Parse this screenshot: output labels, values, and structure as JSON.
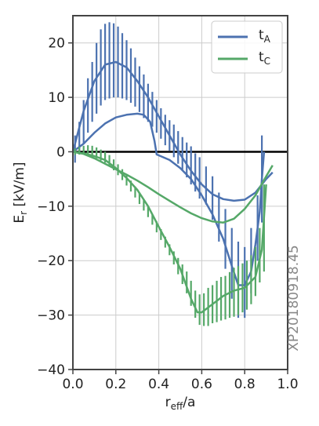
{
  "chart_data": {
    "type": "line",
    "xlabel": {
      "main": "r",
      "sub": "eff",
      "tail": "/a"
    },
    "ylabel": {
      "main": "E",
      "sub": "r",
      "tail": " [kV/m]"
    },
    "xlim": [
      0.0,
      1.0
    ],
    "ylim": [
      -40,
      25
    ],
    "xticks": [
      0.0,
      0.2,
      0.4,
      0.6,
      0.8,
      1.0
    ],
    "xtick_labels": [
      "0.0",
      "0.2",
      "0.4",
      "0.6",
      "0.8",
      "1.0"
    ],
    "yticks": [
      -40,
      -30,
      -20,
      -10,
      0,
      10,
      20
    ],
    "ytick_labels": [
      "−40",
      "−30",
      "−20",
      "−10",
      "0",
      "10",
      "20"
    ],
    "grid": true,
    "legend_position": "top-right",
    "zero_line": true,
    "watermark": "XP20180918.45",
    "series": [
      {
        "legend_main": "t",
        "legend_sub": "A",
        "color": "#4c72b0",
        "fits": [
          {
            "x": [
              0.0,
              0.05,
              0.1,
              0.15,
              0.2,
              0.25,
              0.3,
              0.35,
              0.4,
              0.45,
              0.5,
              0.55,
              0.6,
              0.65,
              0.7,
              0.75,
              0.8,
              0.85,
              0.9,
              0.93
            ],
            "y": [
              0.0,
              7.5,
              13.0,
              16.0,
              16.5,
              15.5,
              13.0,
              10.0,
              6.5,
              3.0,
              -0.5,
              -3.5,
              -6.0,
              -7.8,
              -8.7,
              -9.0,
              -8.8,
              -7.5,
              -5.0,
              -3.8
            ]
          },
          {
            "x": [
              0.0,
              0.05,
              0.1,
              0.15,
              0.2,
              0.25,
              0.3,
              0.33,
              0.36,
              0.38,
              0.39,
              0.45,
              0.5,
              0.55,
              0.6,
              0.65,
              0.7,
              0.74,
              0.77,
              0.8,
              0.83,
              0.85,
              0.87,
              0.88,
              0.89
            ],
            "y": [
              0.0,
              1.5,
              3.5,
              5.2,
              6.3,
              6.8,
              7.0,
              6.8,
              5.5,
              2.0,
              -0.5,
              -1.5,
              -3.0,
              -5.0,
              -8.0,
              -11.5,
              -16.0,
              -21.0,
              -24.5,
              -24.5,
              -22.0,
              -17.0,
              -11.0,
              -5.0,
              0.0
            ]
          }
        ],
        "errorbars": [
          {
            "x": 0.01,
            "y": 0.5,
            "err": 2.5
          },
          {
            "x": 0.03,
            "y": 2.5,
            "err": 3.0
          },
          {
            "x": 0.05,
            "y": 5.5,
            "err": 4.0
          },
          {
            "x": 0.07,
            "y": 8.5,
            "err": 5.0
          },
          {
            "x": 0.09,
            "y": 11.0,
            "err": 5.5
          },
          {
            "x": 0.11,
            "y": 13.5,
            "err": 6.5
          },
          {
            "x": 0.13,
            "y": 15.5,
            "err": 7.0
          },
          {
            "x": 0.15,
            "y": 16.5,
            "err": 7.0
          },
          {
            "x": 0.17,
            "y": 16.8,
            "err": 7.0
          },
          {
            "x": 0.19,
            "y": 16.8,
            "err": 6.8
          },
          {
            "x": 0.21,
            "y": 16.5,
            "err": 6.5
          },
          {
            "x": 0.23,
            "y": 15.8,
            "err": 6.0
          },
          {
            "x": 0.25,
            "y": 15.0,
            "err": 5.5
          },
          {
            "x": 0.27,
            "y": 14.0,
            "err": 5.0
          },
          {
            "x": 0.29,
            "y": 12.8,
            "err": 4.5
          },
          {
            "x": 0.31,
            "y": 11.5,
            "err": 4.2
          },
          {
            "x": 0.33,
            "y": 10.2,
            "err": 4.0
          },
          {
            "x": 0.35,
            "y": 9.0,
            "err": 3.5
          },
          {
            "x": 0.37,
            "y": 7.8,
            "err": 3.2
          },
          {
            "x": 0.39,
            "y": 6.5,
            "err": 3.0
          },
          {
            "x": 0.41,
            "y": 5.2,
            "err": 2.8
          },
          {
            "x": 0.43,
            "y": 4.0,
            "err": 2.8
          },
          {
            "x": 0.45,
            "y": 3.0,
            "err": 2.8
          },
          {
            "x": 0.47,
            "y": 2.0,
            "err": 3.0
          },
          {
            "x": 0.49,
            "y": 0.8,
            "err": 3.0
          },
          {
            "x": 0.51,
            "y": -0.3,
            "err": 3.0
          },
          {
            "x": 0.53,
            "y": -1.5,
            "err": 3.2
          },
          {
            "x": 0.55,
            "y": -2.5,
            "err": 3.5
          },
          {
            "x": 0.57,
            "y": -3.8,
            "err": 3.5
          },
          {
            "x": 0.59,
            "y": -4.8,
            "err": 3.8
          },
          {
            "x": 0.62,
            "y": -6.2,
            "err": 3.5
          },
          {
            "x": 0.65,
            "y": -8.5,
            "err": 4.0
          },
          {
            "x": 0.68,
            "y": -12.0,
            "err": 4.5
          },
          {
            "x": 0.71,
            "y": -16.0,
            "err": 5.5
          },
          {
            "x": 0.74,
            "y": -20.5,
            "err": 6.5
          },
          {
            "x": 0.77,
            "y": -23.5,
            "err": 7.0
          },
          {
            "x": 0.8,
            "y": -24.0,
            "err": 6.5
          },
          {
            "x": 0.83,
            "y": -20.0,
            "err": 6.0
          },
          {
            "x": 0.86,
            "y": -14.0,
            "err": 6.0
          },
          {
            "x": 0.88,
            "y": -5.0,
            "err": 8.0
          }
        ]
      },
      {
        "legend_main": "t",
        "legend_sub": "C",
        "color": "#55a868",
        "fits": [
          {
            "x": [
              0.0,
              0.05,
              0.1,
              0.15,
              0.2,
              0.25,
              0.3,
              0.35,
              0.4,
              0.45,
              0.5,
              0.55,
              0.6,
              0.65,
              0.7,
              0.75,
              0.8,
              0.85,
              0.9,
              0.93
            ],
            "y": [
              0.0,
              -0.4,
              -1.2,
              -2.2,
              -3.2,
              -4.2,
              -5.3,
              -6.5,
              -7.8,
              -9.0,
              -10.2,
              -11.3,
              -12.2,
              -12.8,
              -13.0,
              -12.3,
              -10.5,
              -8.0,
              -4.5,
              -2.5
            ]
          },
          {
            "x": [
              0.0,
              0.05,
              0.1,
              0.15,
              0.2,
              0.25,
              0.3,
              0.35,
              0.4,
              0.45,
              0.5,
              0.55,
              0.58,
              0.6,
              0.65,
              0.7,
              0.75,
              0.8,
              0.85,
              0.88,
              0.9
            ],
            "y": [
              0.0,
              -0.3,
              -0.8,
              -1.5,
              -3.0,
              -4.8,
              -7.0,
              -10.0,
              -13.8,
              -17.5,
              -21.5,
              -27.0,
              -29.5,
              -29.5,
              -28.0,
              -26.5,
              -25.5,
              -25.0,
              -23.0,
              -18.0,
              -6.0
            ]
          }
        ],
        "errorbars": [
          {
            "x": 0.01,
            "y": 0.0,
            "err": 0.6
          },
          {
            "x": 0.03,
            "y": 0.2,
            "err": 0.7
          },
          {
            "x": 0.05,
            "y": 0.3,
            "err": 0.8
          },
          {
            "x": 0.07,
            "y": 0.3,
            "err": 0.9
          },
          {
            "x": 0.09,
            "y": 0.1,
            "err": 1.0
          },
          {
            "x": 0.11,
            "y": -0.2,
            "err": 1.0
          },
          {
            "x": 0.13,
            "y": -0.6,
            "err": 1.0
          },
          {
            "x": 0.15,
            "y": -1.0,
            "err": 1.0
          },
          {
            "x": 0.17,
            "y": -1.6,
            "err": 1.0
          },
          {
            "x": 0.19,
            "y": -2.4,
            "err": 1.0
          },
          {
            "x": 0.21,
            "y": -3.3,
            "err": 1.0
          },
          {
            "x": 0.23,
            "y": -4.2,
            "err": 1.0
          },
          {
            "x": 0.25,
            "y": -5.2,
            "err": 1.0
          },
          {
            "x": 0.27,
            "y": -6.3,
            "err": 1.0
          },
          {
            "x": 0.29,
            "y": -7.4,
            "err": 1.0
          },
          {
            "x": 0.31,
            "y": -8.6,
            "err": 1.0
          },
          {
            "x": 0.33,
            "y": -9.8,
            "err": 1.0
          },
          {
            "x": 0.35,
            "y": -11.0,
            "err": 1.0
          },
          {
            "x": 0.37,
            "y": -12.4,
            "err": 1.0
          },
          {
            "x": 0.39,
            "y": -13.8,
            "err": 1.0
          },
          {
            "x": 0.41,
            "y": -15.2,
            "err": 1.0
          },
          {
            "x": 0.43,
            "y": -16.6,
            "err": 1.0
          },
          {
            "x": 0.45,
            "y": -18.0,
            "err": 1.0
          },
          {
            "x": 0.47,
            "y": -19.5,
            "err": 1.2
          },
          {
            "x": 0.49,
            "y": -21.0,
            "err": 1.5
          },
          {
            "x": 0.51,
            "y": -22.5,
            "err": 1.8
          },
          {
            "x": 0.53,
            "y": -24.0,
            "err": 2.0
          },
          {
            "x": 0.55,
            "y": -26.0,
            "err": 2.3
          },
          {
            "x": 0.57,
            "y": -28.0,
            "err": 2.5
          },
          {
            "x": 0.59,
            "y": -29.0,
            "err": 2.8
          },
          {
            "x": 0.61,
            "y": -29.0,
            "err": 3.0
          },
          {
            "x": 0.63,
            "y": -28.5,
            "err": 3.5
          },
          {
            "x": 0.65,
            "y": -28.0,
            "err": 3.5
          },
          {
            "x": 0.67,
            "y": -27.5,
            "err": 3.8
          },
          {
            "x": 0.69,
            "y": -27.0,
            "err": 4.0
          },
          {
            "x": 0.71,
            "y": -26.8,
            "err": 4.0
          },
          {
            "x": 0.73,
            "y": -26.3,
            "err": 4.2
          },
          {
            "x": 0.75,
            "y": -25.8,
            "err": 4.5
          },
          {
            "x": 0.77,
            "y": -25.5,
            "err": 4.5
          },
          {
            "x": 0.79,
            "y": -25.0,
            "err": 4.5
          },
          {
            "x": 0.81,
            "y": -24.5,
            "err": 4.5
          },
          {
            "x": 0.83,
            "y": -23.5,
            "err": 4.5
          },
          {
            "x": 0.85,
            "y": -22.0,
            "err": 4.5
          },
          {
            "x": 0.87,
            "y": -19.0,
            "err": 5.0
          },
          {
            "x": 0.89,
            "y": -14.0,
            "err": 8.0
          }
        ]
      }
    ]
  }
}
